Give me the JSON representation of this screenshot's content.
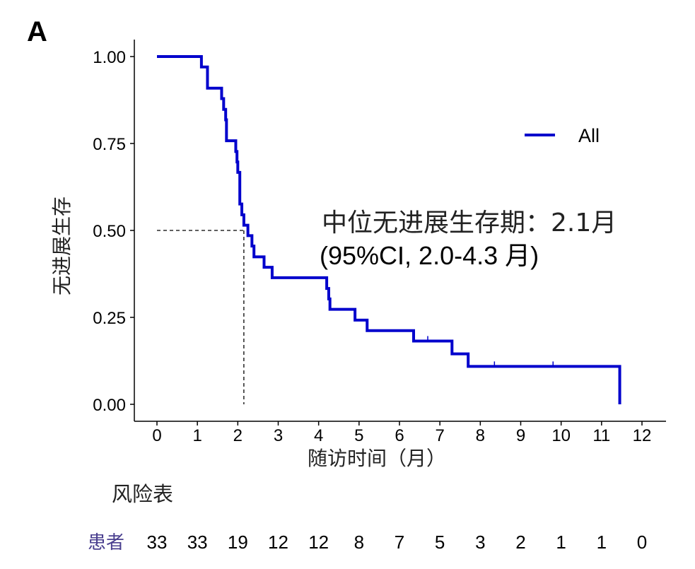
{
  "panel_label": "A",
  "chart_data": {
    "type": "line",
    "subtype": "kaplan-meier step curve",
    "xlabel": "随访时间（月）",
    "ylabel": "无进展生存",
    "xlim": [
      0,
      12
    ],
    "ylim": [
      0,
      1
    ],
    "x_ticks": [
      "0",
      "1",
      "2",
      "3",
      "4",
      "5",
      "6",
      "7",
      "8",
      "9",
      "10",
      "11",
      "12"
    ],
    "y_ticks": [
      "0.00",
      "0.25",
      "0.50",
      "0.75",
      "1.00"
    ],
    "grid": false,
    "legend": {
      "position": "right",
      "entries": [
        "All"
      ]
    },
    "series": [
      {
        "name": "All",
        "color": "#0000cc",
        "steps": [
          [
            0.0,
            1.0
          ],
          [
            1.1,
            0.97
          ],
          [
            1.25,
            0.909
          ],
          [
            1.6,
            0.879
          ],
          [
            1.65,
            0.848
          ],
          [
            1.7,
            0.818
          ],
          [
            1.72,
            0.758
          ],
          [
            1.95,
            0.727
          ],
          [
            1.98,
            0.697
          ],
          [
            2.0,
            0.667
          ],
          [
            2.05,
            0.576
          ],
          [
            2.1,
            0.545
          ],
          [
            2.15,
            0.515
          ],
          [
            2.25,
            0.485
          ],
          [
            2.35,
            0.455
          ],
          [
            2.4,
            0.424
          ],
          [
            2.65,
            0.394
          ],
          [
            2.85,
            0.364
          ],
          [
            4.2,
            0.333
          ],
          [
            4.25,
            0.303
          ],
          [
            4.28,
            0.273
          ],
          [
            4.9,
            0.242
          ],
          [
            5.2,
            0.212
          ],
          [
            6.35,
            0.182
          ],
          [
            7.3,
            0.145
          ],
          [
            7.7,
            0.109
          ],
          [
            11.45,
            0.109
          ]
        ],
        "end_drop": [
          11.45,
          0.0
        ],
        "censor_times": [
          6.7,
          8.35,
          9.8
        ]
      }
    ],
    "median_reference": {
      "x": 2.15,
      "y": 0.5
    },
    "annotation": {
      "line1": "中位无进展生存期：2.1月",
      "line2": "(95%CI, 2.0-4.3 月)"
    },
    "risk_table": {
      "title": "风险表",
      "row_label": "患者",
      "counts": [
        "33",
        "33",
        "19",
        "12",
        "12",
        "8",
        "7",
        "5",
        "3",
        "2",
        "1",
        "1",
        "0"
      ]
    }
  }
}
